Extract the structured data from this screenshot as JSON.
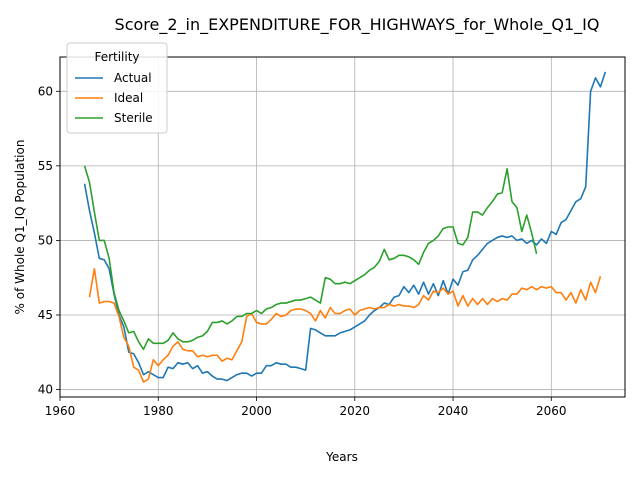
{
  "chart_data": {
    "type": "line",
    "title": "Score_2_in_EXPENDITURE_FOR_HIGHWAYS_for_Whole_Q1_IQ",
    "xlabel": "Years",
    "ylabel": "% of Whole Q1_IQ Population",
    "xlim": [
      1960,
      2075
    ],
    "ylim": [
      39.5,
      62.3
    ],
    "xticks": [
      1960,
      1980,
      2000,
      2020,
      2040,
      2060
    ],
    "yticks": [
      40,
      45,
      50,
      55,
      60
    ],
    "grid": true,
    "legend": {
      "title": "Fertility",
      "placement": "top-left"
    },
    "series": [
      {
        "name": "Actual",
        "color": "#1f77b4",
        "x_start": 1965,
        "values": [
          53.8,
          52.0,
          50.5,
          48.8,
          48.7,
          48.1,
          46.4,
          45.0,
          44.2,
          42.5,
          42.4,
          41.8,
          41.0,
          41.2,
          41.0,
          40.8,
          40.8,
          41.5,
          41.4,
          41.8,
          41.7,
          41.8,
          41.4,
          41.6,
          41.1,
          41.2,
          40.9,
          40.7,
          40.7,
          40.6,
          40.8,
          41.0,
          41.1,
          41.1,
          40.9,
          41.1,
          41.1,
          41.6,
          41.6,
          41.8,
          41.7,
          41.7,
          41.5,
          41.5,
          41.4,
          41.3,
          44.1,
          44.0,
          43.8,
          43.6,
          43.6,
          43.6,
          43.8,
          43.9,
          44.0,
          44.2,
          44.4,
          44.6,
          45.0,
          45.3,
          45.5,
          45.8,
          45.7,
          46.2,
          46.3,
          46.9,
          46.5,
          47.0,
          46.4,
          47.2,
          46.4,
          47.1,
          46.3,
          47.3,
          46.4,
          47.4,
          47.0,
          47.9,
          48.0,
          48.7,
          49.0,
          49.4,
          49.8,
          50.0,
          50.2,
          50.3,
          50.2,
          50.3,
          50.0,
          50.1,
          49.8,
          50.0,
          49.7,
          50.1,
          49.8,
          50.6,
          50.4,
          51.2,
          51.4,
          52.0,
          52.6,
          52.8,
          53.6,
          60.0,
          60.9,
          60.3,
          61.3
        ]
      },
      {
        "name": "Ideal",
        "color": "#ff7f0e",
        "x_start": 1966,
        "values": [
          46.2,
          48.1,
          45.8,
          45.9,
          45.9,
          45.8,
          44.9,
          43.5,
          42.9,
          41.5,
          41.3,
          40.5,
          40.7,
          42.0,
          41.6,
          42.0,
          42.3,
          42.9,
          43.2,
          42.7,
          42.6,
          42.6,
          42.2,
          42.3,
          42.2,
          42.3,
          42.3,
          41.9,
          42.1,
          42.0,
          42.6,
          43.2,
          44.9,
          45.1,
          44.5,
          44.4,
          44.4,
          44.7,
          45.1,
          44.9,
          45.0,
          45.3,
          45.4,
          45.4,
          45.3,
          45.1,
          44.6,
          45.3,
          44.8,
          45.5,
          45.1,
          45.1,
          45.3,
          45.4,
          45.0,
          45.3,
          45.4,
          45.5,
          45.4,
          45.5,
          45.5,
          45.7,
          45.6,
          45.7,
          45.6,
          45.6,
          45.5,
          45.7,
          46.3,
          46.0,
          46.6,
          46.5,
          46.8,
          46.4,
          46.6,
          45.6,
          46.3,
          45.6,
          46.1,
          45.7,
          46.1,
          45.7,
          46.1,
          45.9,
          46.1,
          46.0,
          46.4,
          46.4,
          46.8,
          46.7,
          46.9,
          46.7,
          46.9,
          46.8,
          46.9,
          46.5,
          46.5,
          46.0,
          46.5,
          45.8,
          46.7,
          46.0,
          47.2,
          46.5,
          47.6
        ]
      },
      {
        "name": "Sterile",
        "color": "#2ca02c",
        "x_start": 1965,
        "values": [
          55.0,
          53.9,
          51.9,
          50.0,
          50.0,
          48.8,
          46.5,
          45.3,
          44.6,
          43.8,
          43.9,
          43.2,
          42.7,
          43.4,
          43.1,
          43.1,
          43.1,
          43.3,
          43.8,
          43.4,
          43.2,
          43.2,
          43.3,
          43.5,
          43.6,
          43.9,
          44.5,
          44.5,
          44.6,
          44.4,
          44.6,
          44.9,
          44.9,
          45.1,
          45.1,
          45.3,
          45.1,
          45.4,
          45.5,
          45.7,
          45.8,
          45.8,
          45.9,
          46.0,
          46.0,
          46.1,
          46.2,
          46.0,
          45.8,
          47.5,
          47.4,
          47.1,
          47.1,
          47.2,
          47.1,
          47.3,
          47.5,
          47.7,
          48.0,
          48.2,
          48.6,
          49.4,
          48.7,
          48.8,
          49.0,
          49.0,
          48.9,
          48.7,
          48.4,
          49.2,
          49.8,
          50.0,
          50.3,
          50.8,
          50.9,
          50.9,
          49.8,
          49.7,
          50.2,
          51.9,
          51.9,
          51.7,
          52.2,
          52.6,
          53.1,
          53.2,
          54.8,
          52.6,
          52.2,
          50.6,
          51.7,
          50.5,
          49.1
        ]
      }
    ]
  }
}
